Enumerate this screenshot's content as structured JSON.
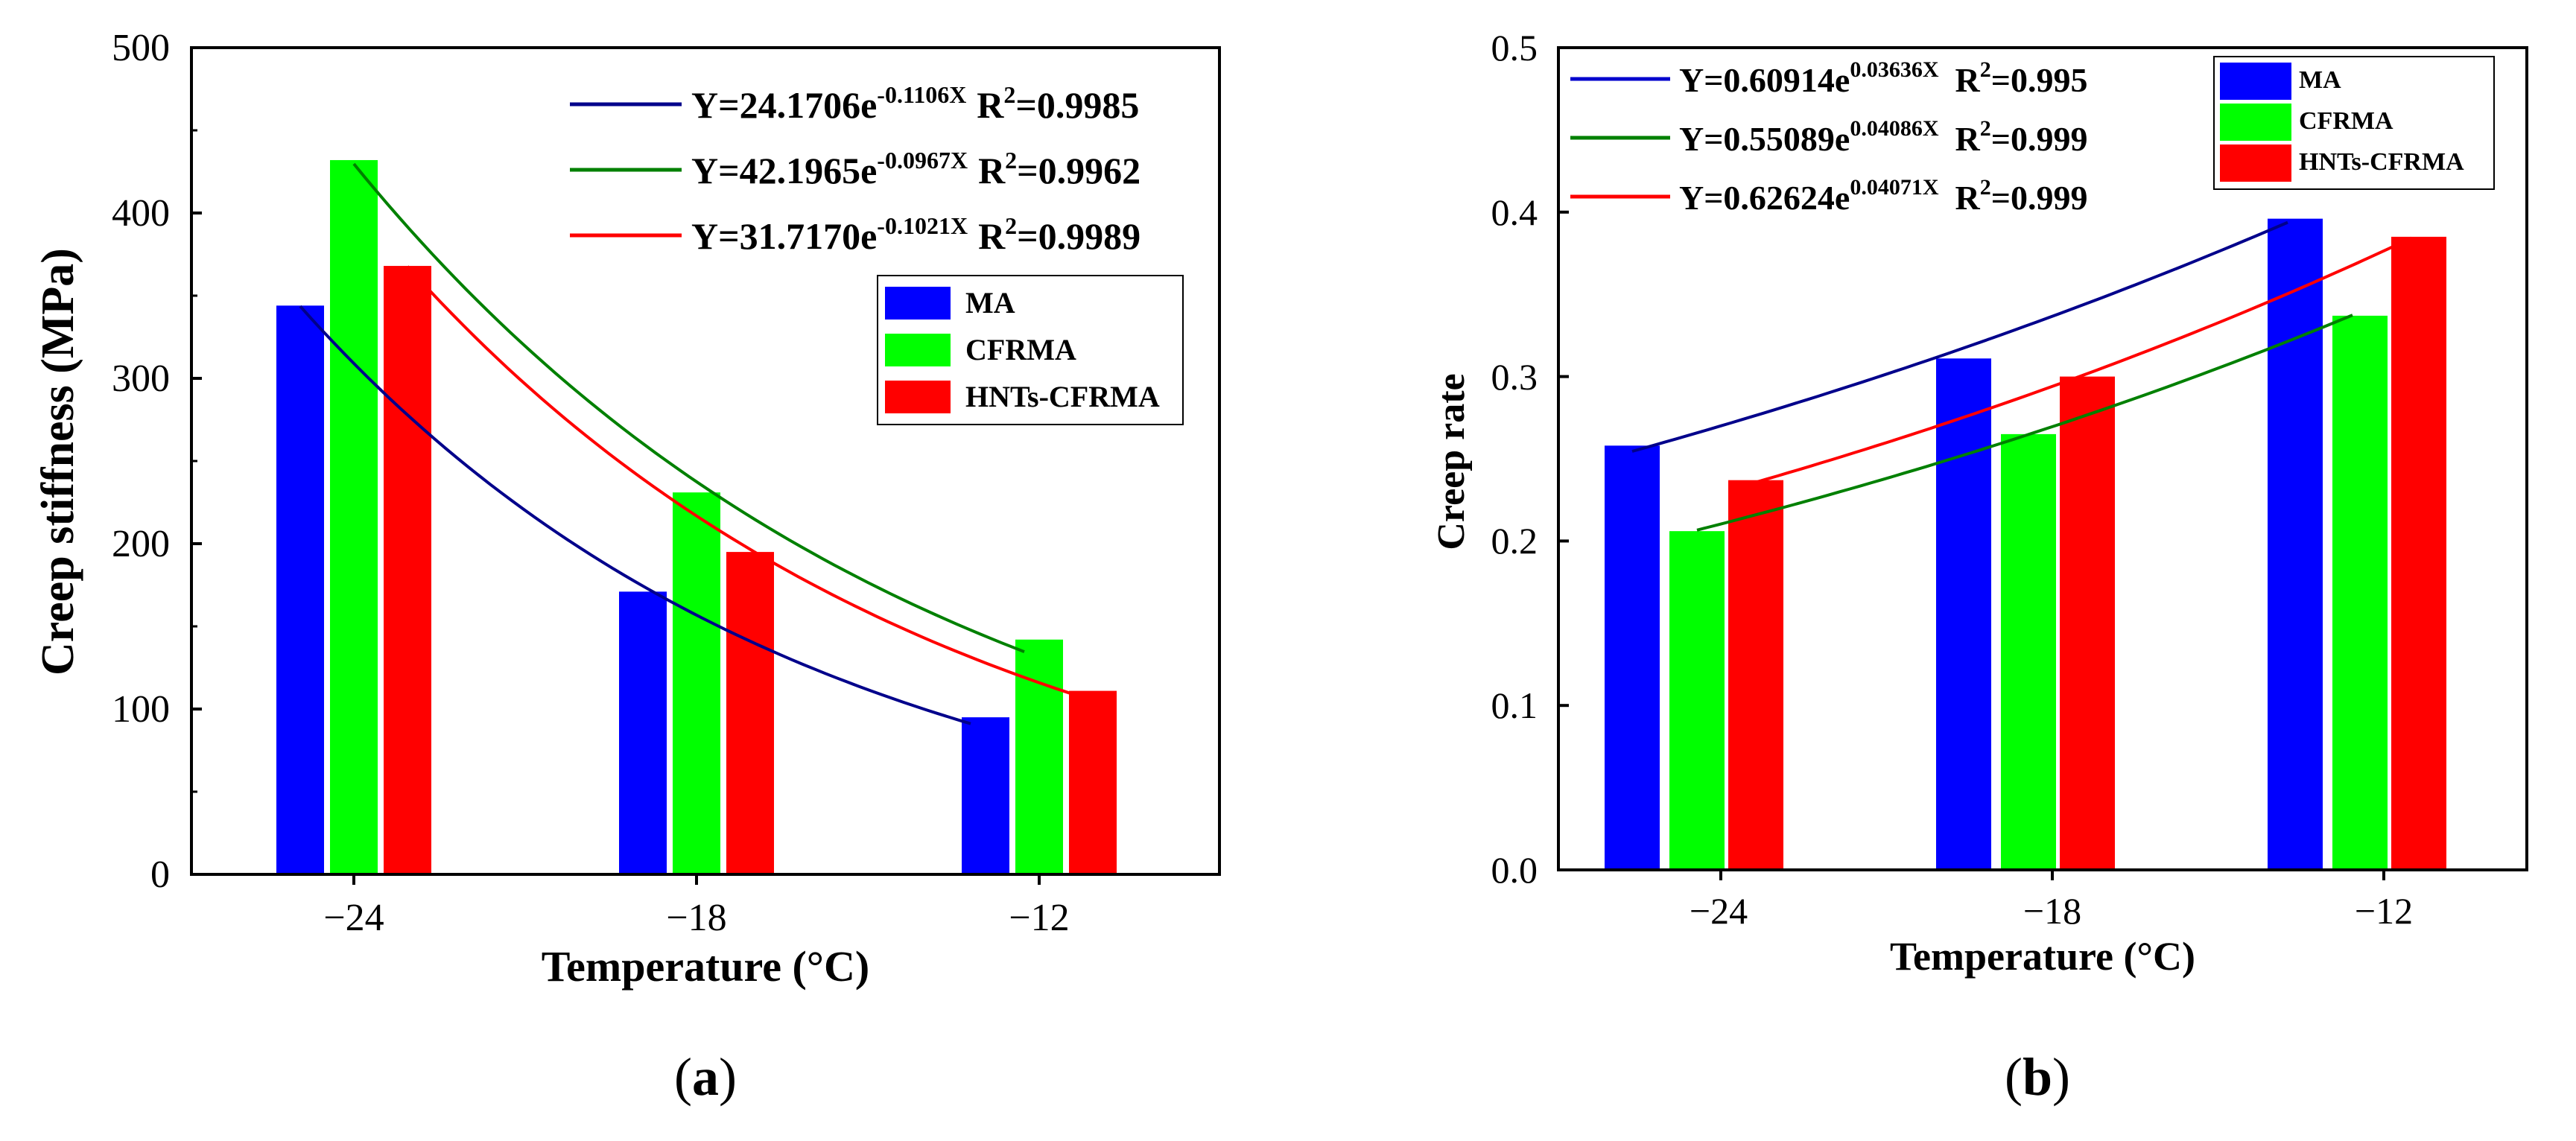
{
  "colors": {
    "ma": "#0000ff",
    "cfrma": "#00ff00",
    "hnts": "#ff0000",
    "fit_ma": "#00008b",
    "fit_cfrma": "#008000",
    "fit_hnts": "#ff0000"
  },
  "panels": [
    {
      "label": "(a)",
      "label_parts": [
        "(",
        "a",
        ")"
      ]
    },
    {
      "label": "(b)",
      "label_parts": [
        "(",
        "b",
        ")"
      ]
    }
  ],
  "chart_data": [
    {
      "type": "bar",
      "title": "",
      "xlabel": "Temperature (°C)",
      "ylabel": "Creep stiffness (MPa)",
      "categories": [
        "−24",
        "−18",
        "−12"
      ],
      "ylim": [
        0,
        500
      ],
      "yticks": [
        0,
        100,
        200,
        300,
        400,
        500
      ],
      "ytick_labels": [
        "0",
        "100",
        "200",
        "300",
        "400",
        "500"
      ],
      "series": [
        {
          "name": "MA",
          "values": [
            344,
            171,
            95
          ]
        },
        {
          "name": "CFRMA",
          "values": [
            432,
            231,
            142
          ]
        },
        {
          "name": "HNTs-CFRMA",
          "values": [
            368,
            195,
            111
          ]
        }
      ],
      "fits": [
        {
          "series": "MA",
          "a": 24.1706,
          "b": -0.1106,
          "x_from": -24,
          "x_to": -12,
          "eq_main": "Y=24.1706e",
          "eq_exp": "-0.1106X",
          "r2_prefix": "R",
          "r2_sup": "2",
          "r2_value": "=0.9985"
        },
        {
          "series": "CFRMA",
          "a": 42.1965,
          "b": -0.0967,
          "x_from": -24,
          "x_to": -12,
          "eq_main": "Y=42.1965e",
          "eq_exp": "-0.0967X",
          "r2_prefix": "R",
          "r2_sup": "2",
          "r2_value": "=0.9962"
        },
        {
          "series": "HNTs-CFRMA",
          "a": 31.717,
          "b": -0.1021,
          "x_from": -24,
          "x_to": -12,
          "eq_main": "Y=31.7170e",
          "eq_exp": "-0.1021X",
          "r2_prefix": "R",
          "r2_sup": "2",
          "r2_value": "=0.9989"
        }
      ],
      "legend": [
        "MA",
        "CFRMA",
        "HNTs-CFRMA"
      ]
    },
    {
      "type": "bar",
      "title": "",
      "xlabel": "Temperature (°C)",
      "ylabel": "Creep rate",
      "categories": [
        "−24",
        "−18",
        "−12"
      ],
      "ylim": [
        0,
        0.5
      ],
      "yticks": [
        0,
        0.1,
        0.2,
        0.3,
        0.4,
        0.5
      ],
      "ytick_labels": [
        "0.0",
        "0.1",
        "0.2",
        "0.3",
        "0.4",
        "0.5"
      ],
      "series": [
        {
          "name": "MA",
          "values": [
            0.258,
            0.311,
            0.396
          ]
        },
        {
          "name": "CFRMA",
          "values": [
            0.206,
            0.265,
            0.337
          ]
        },
        {
          "name": "HNTs-CFRMA",
          "values": [
            0.237,
            0.3,
            0.385
          ]
        }
      ],
      "fits": [
        {
          "series": "MA",
          "a": 0.60914,
          "b": 0.03636,
          "x_from": -24,
          "x_to": -12,
          "eq_main": "Y=0.60914e",
          "eq_exp": "0.03636X",
          "r2_prefix": "R",
          "r2_sup": "2",
          "r2_value": "=0.995"
        },
        {
          "series": "CFRMA",
          "a": 0.55089,
          "b": 0.04086,
          "x_from": -24,
          "x_to": -12,
          "eq_main": "Y=0.55089e",
          "eq_exp": "0.04086X",
          "r2_prefix": "R",
          "r2_sup": "2",
          "r2_value": "=0.999"
        },
        {
          "series": "HNTs-CFRMA",
          "a": 0.62624,
          "b": 0.04071,
          "x_from": -24,
          "x_to": -12,
          "eq_main": "Y=0.62624e",
          "eq_exp": "0.04071X",
          "r2_prefix": "R",
          "r2_sup": "2",
          "r2_value": "=0.999"
        }
      ],
      "legend": [
        "MA",
        "CFRMA",
        "HNTs-CFRMA"
      ]
    }
  ]
}
